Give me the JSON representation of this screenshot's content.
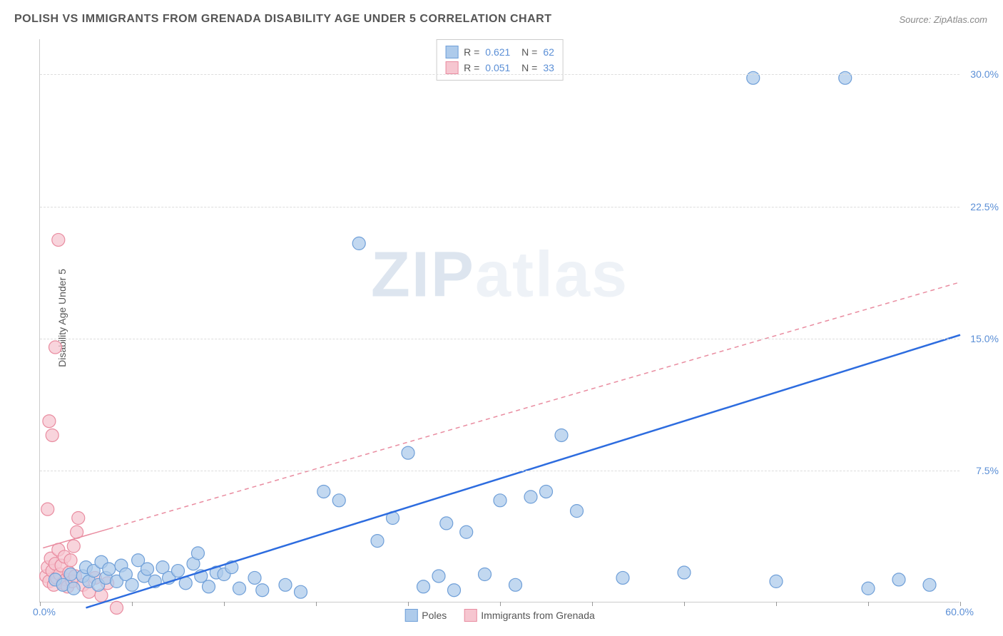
{
  "title": "POLISH VS IMMIGRANTS FROM GRENADA DISABILITY AGE UNDER 5 CORRELATION CHART",
  "source": "Source: ZipAtlas.com",
  "watermark": {
    "part1": "ZIP",
    "part2": "atlas"
  },
  "ylabel": "Disability Age Under 5",
  "chart": {
    "type": "scatter",
    "xlim": [
      0,
      60
    ],
    "ylim": [
      0,
      32
    ],
    "xtick_positions": [
      0,
      6,
      12,
      18,
      24,
      30,
      36,
      42,
      48,
      54,
      60
    ],
    "xlim_labels": {
      "left": "0.0%",
      "right": "60.0%"
    },
    "ytick_labels": [
      "7.5%",
      "15.0%",
      "22.5%",
      "30.0%"
    ],
    "ytick_values": [
      7.5,
      15.0,
      22.5,
      30.0
    ],
    "grid_color": "#dddddd",
    "background_color": "#ffffff",
    "marker_radius": 9,
    "marker_stroke_width": 1.2,
    "series": [
      {
        "name": "Poles",
        "color_fill": "#aecbeb",
        "color_stroke": "#6f9fd8",
        "trend_color": "#2d6cdf",
        "trend_width": 2.5,
        "trend_dash": "none",
        "trend_solid_until_x": 60,
        "trend": {
          "x1": 3,
          "y1": -0.3,
          "x2": 60,
          "y2": 15.2
        },
        "stats": {
          "R": "0.621",
          "N": "62"
        },
        "points": [
          [
            1.0,
            1.3
          ],
          [
            1.5,
            1.0
          ],
          [
            2.0,
            1.6
          ],
          [
            2.2,
            0.8
          ],
          [
            2.8,
            1.5
          ],
          [
            3.0,
            2.0
          ],
          [
            3.2,
            1.2
          ],
          [
            3.5,
            1.8
          ],
          [
            3.8,
            1.0
          ],
          [
            4.0,
            2.3
          ],
          [
            4.3,
            1.4
          ],
          [
            4.5,
            1.9
          ],
          [
            5.0,
            1.2
          ],
          [
            5.3,
            2.1
          ],
          [
            5.6,
            1.6
          ],
          [
            6.0,
            1.0
          ],
          [
            6.4,
            2.4
          ],
          [
            6.8,
            1.5
          ],
          [
            7.0,
            1.9
          ],
          [
            7.5,
            1.2
          ],
          [
            8.0,
            2.0
          ],
          [
            8.4,
            1.4
          ],
          [
            9.0,
            1.8
          ],
          [
            9.5,
            1.1
          ],
          [
            10.0,
            2.2
          ],
          [
            10.3,
            2.8
          ],
          [
            10.5,
            1.5
          ],
          [
            11.0,
            0.9
          ],
          [
            11.5,
            1.7
          ],
          [
            12.0,
            1.6
          ],
          [
            12.5,
            2.0
          ],
          [
            13.0,
            0.8
          ],
          [
            14.0,
            1.4
          ],
          [
            14.5,
            0.7
          ],
          [
            16.0,
            1.0
          ],
          [
            17.0,
            0.6
          ],
          [
            18.5,
            6.3
          ],
          [
            19.5,
            5.8
          ],
          [
            20.8,
            20.4
          ],
          [
            22.0,
            3.5
          ],
          [
            23.0,
            4.8
          ],
          [
            24.0,
            8.5
          ],
          [
            25.0,
            0.9
          ],
          [
            26.0,
            1.5
          ],
          [
            26.5,
            4.5
          ],
          [
            27.0,
            0.7
          ],
          [
            27.8,
            4.0
          ],
          [
            29.0,
            1.6
          ],
          [
            30.0,
            5.8
          ],
          [
            31.0,
            1.0
          ],
          [
            32.0,
            6.0
          ],
          [
            33.0,
            6.3
          ],
          [
            34.0,
            9.5
          ],
          [
            35.0,
            5.2
          ],
          [
            38.0,
            1.4
          ],
          [
            42.0,
            1.7
          ],
          [
            46.5,
            29.8
          ],
          [
            48.0,
            1.2
          ],
          [
            52.5,
            29.8
          ],
          [
            54.0,
            0.8
          ],
          [
            56.0,
            1.3
          ],
          [
            58.0,
            1.0
          ]
        ]
      },
      {
        "name": "Immigrants from Grenada",
        "color_fill": "#f6c6d0",
        "color_stroke": "#e98ca0",
        "trend_color": "#e98ca0",
        "trend_width": 1.5,
        "trend_dash": "6,5",
        "trend_solid_until_x": 4.5,
        "trend": {
          "x1": 0.2,
          "y1": 3.1,
          "x2": 60,
          "y2": 18.2
        },
        "stats": {
          "R": "0.051",
          "N": "33"
        },
        "points": [
          [
            0.4,
            1.5
          ],
          [
            0.5,
            2.0
          ],
          [
            0.6,
            1.2
          ],
          [
            0.7,
            2.5
          ],
          [
            0.8,
            1.8
          ],
          [
            0.9,
            1.0
          ],
          [
            1.0,
            2.2
          ],
          [
            1.1,
            1.4
          ],
          [
            1.2,
            3.0
          ],
          [
            1.3,
            1.6
          ],
          [
            1.4,
            2.1
          ],
          [
            1.5,
            1.1
          ],
          [
            1.6,
            2.6
          ],
          [
            1.7,
            1.3
          ],
          [
            1.8,
            0.9
          ],
          [
            1.9,
            1.7
          ],
          [
            2.0,
            2.4
          ],
          [
            2.1,
            1.2
          ],
          [
            2.2,
            3.2
          ],
          [
            2.3,
            1.5
          ],
          [
            2.4,
            4.0
          ],
          [
            2.5,
            4.8
          ],
          [
            0.5,
            5.3
          ],
          [
            0.8,
            9.5
          ],
          [
            0.6,
            10.3
          ],
          [
            1.0,
            14.5
          ],
          [
            1.2,
            20.6
          ],
          [
            2.8,
            1.0
          ],
          [
            3.2,
            0.6
          ],
          [
            3.6,
            1.4
          ],
          [
            4.0,
            0.4
          ],
          [
            4.4,
            1.1
          ],
          [
            5.0,
            -0.3
          ]
        ]
      }
    ],
    "bottom_legend": [
      {
        "label": "Poles",
        "fill": "#aecbeb",
        "stroke": "#6f9fd8"
      },
      {
        "label": "Immigrants from Grenada",
        "fill": "#f6c6d0",
        "stroke": "#e98ca0"
      }
    ]
  }
}
